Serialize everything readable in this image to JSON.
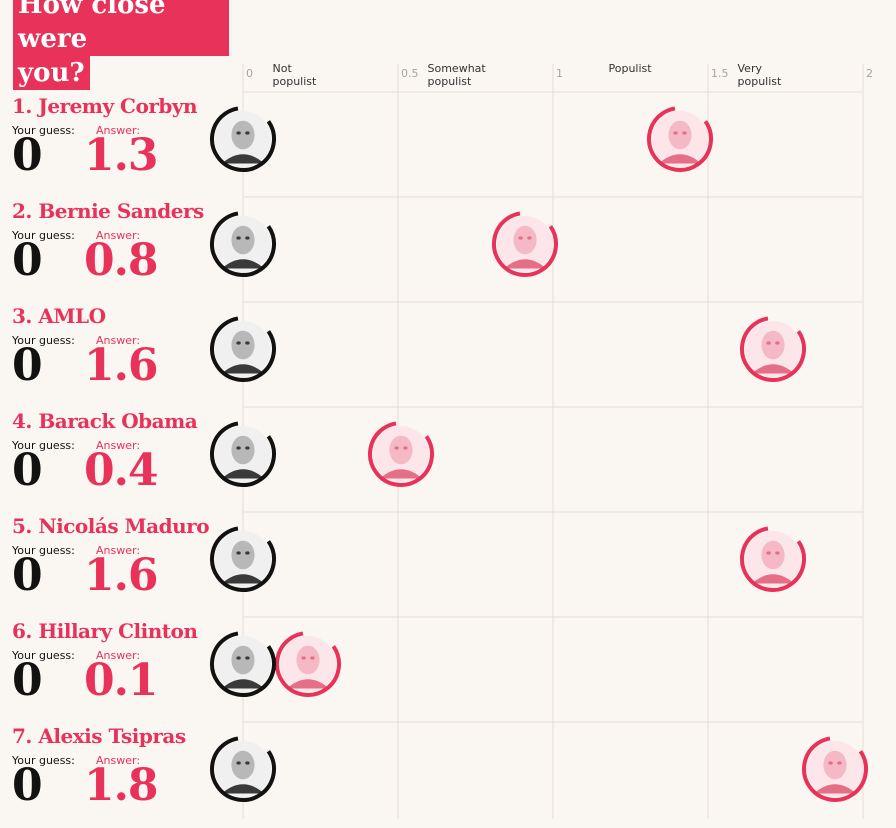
{
  "title": {
    "line1": "How close were",
    "line2": "you?"
  },
  "labels": {
    "your_guess": "Your guess:",
    "answer": "Answer:"
  },
  "colors": {
    "accent": "#e8325a",
    "ink": "#121212",
    "grid": "#e6ddd3",
    "background": "#faf6f1"
  },
  "chart_data": {
    "type": "scatter",
    "title": "How close were you?",
    "xlim": [
      0,
      2
    ],
    "x_ticks": [
      "0",
      "0.5",
      "1",
      "1.5",
      "2"
    ],
    "tick_values": [
      0,
      0.5,
      1,
      1.5,
      2
    ],
    "category_labels": [
      {
        "text": [
          "Not",
          "populist"
        ],
        "at": 0.25
      },
      {
        "text": [
          "Somewhat",
          "populist"
        ],
        "at": 0.75
      },
      {
        "text": [
          "Populist"
        ],
        "at": 1.25
      },
      {
        "text": [
          "Very",
          "populist"
        ],
        "at": 1.75
      }
    ],
    "grid": true,
    "series": [
      {
        "name": "Your guess",
        "color": "#121212"
      },
      {
        "name": "Answer",
        "color": "#e8325a"
      }
    ],
    "rows": [
      {
        "rank": "1.",
        "name": "Jeremy Corbyn",
        "guess": 0,
        "guess_label": "0",
        "answer": 1.3,
        "answer_label": "1.3"
      },
      {
        "rank": "2.",
        "name": "Bernie Sanders",
        "guess": 0,
        "guess_label": "0",
        "answer": 0.8,
        "answer_label": "0.8"
      },
      {
        "rank": "3.",
        "name": "AMLO",
        "guess": 0,
        "guess_label": "0",
        "answer": 1.6,
        "answer_label": "1.6"
      },
      {
        "rank": "4.",
        "name": "Barack Obama",
        "guess": 0,
        "guess_label": "0",
        "answer": 0.4,
        "answer_label": "0.4"
      },
      {
        "rank": "5.",
        "name": "Nicolás Maduro",
        "guess": 0,
        "guess_label": "0",
        "answer": 1.6,
        "answer_label": "1.6"
      },
      {
        "rank": "6.",
        "name": "Hillary Clinton",
        "guess": 0,
        "guess_label": "0",
        "answer": 0.1,
        "answer_label": "0.1"
      },
      {
        "rank": "7.",
        "name": "Alexis Tsipras",
        "guess": 0,
        "guess_label": "0",
        "answer": 1.8,
        "answer_label": "1.8"
      }
    ]
  }
}
